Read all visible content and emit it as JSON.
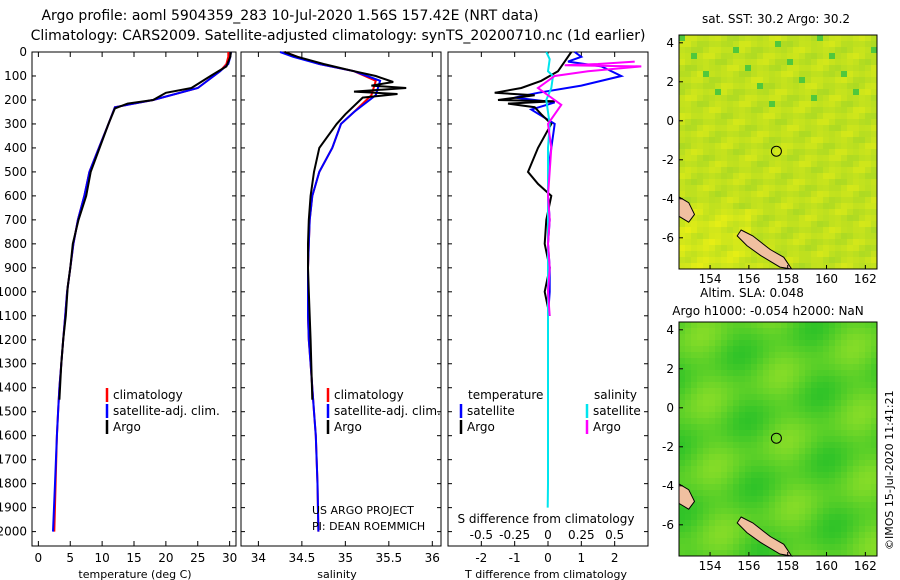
{
  "titles": {
    "line1": "Argo profile: aoml 5904359_283 10-Jul-2020 1.56S 157.42E (NRT data)",
    "line2": "Climatology: CARS2009. Satellite-adjusted climatology: synTS_20200710.nc (1d earlier)"
  },
  "colors": {
    "argo": "#000000",
    "climatology": "#ff0000",
    "satellite": "#0000ff",
    "salinity_sat": "#00e5ee",
    "salinity_argo": "#ff00ff",
    "map_land": "#f0c0a0"
  },
  "chart_data": [
    {
      "type": "line",
      "name": "temperature-profile",
      "xlabel": "temperature (deg C)",
      "ylabel": "",
      "xlim": [
        -1,
        31
      ],
      "ylim": [
        2060,
        0
      ],
      "xticks": [
        "0",
        "5",
        "10",
        "15",
        "20",
        "25",
        "30"
      ],
      "xtick_values": [
        0,
        5,
        10,
        15,
        20,
        25,
        30
      ],
      "yticks": [
        "0",
        "100",
        "200",
        "300",
        "400",
        "500",
        "600",
        "700",
        "800",
        "900",
        "1000",
        "1100",
        "1200",
        "1300",
        "1400",
        "1500",
        "1600",
        "1700",
        "1800",
        "1900",
        "2000"
      ],
      "ytick_values": [
        0,
        100,
        200,
        300,
        400,
        500,
        600,
        700,
        800,
        900,
        1000,
        1100,
        1200,
        1300,
        1400,
        1500,
        1600,
        1700,
        1800,
        1900,
        2000
      ],
      "legend": [
        "climatology",
        "satellite-adj. clim.",
        "Argo"
      ],
      "series": [
        {
          "name": "climatology",
          "color": "#ff0000",
          "x": [
            29.8,
            29.8,
            29.5,
            28.5,
            25,
            18,
            12,
            11,
            9.5,
            8,
            7.2,
            6.2,
            5.5,
            5,
            4.5,
            4.2,
            3.9,
            3.6,
            3.3,
            3.1,
            2.9,
            2.7,
            2.5
          ],
          "y": [
            0,
            20,
            50,
            80,
            150,
            200,
            230,
            300,
            400,
            500,
            600,
            700,
            800,
            900,
            1000,
            1100,
            1200,
            1300,
            1400,
            1500,
            1600,
            1800,
            2000
          ]
        },
        {
          "name": "satellite-adj. clim.",
          "color": "#0000ff",
          "x": [
            30.2,
            30.1,
            29.8,
            28.5,
            25,
            18,
            12,
            11,
            9.5,
            8,
            7.2,
            6.2,
            5.5,
            5,
            4.5,
            4.2,
            3.9,
            3.6,
            3.3,
            3.1,
            2.9,
            2.6,
            2.3
          ],
          "y": [
            0,
            20,
            50,
            80,
            150,
            200,
            230,
            300,
            400,
            500,
            600,
            700,
            800,
            900,
            1000,
            1100,
            1200,
            1300,
            1400,
            1500,
            1600,
            1800,
            2000
          ]
        },
        {
          "name": "Argo",
          "color": "#000000",
          "x": [
            30.2,
            30.1,
            29.5,
            27,
            24,
            20,
            18,
            14,
            12,
            11,
            9.6,
            8.2,
            7.5,
            6.3,
            5.4,
            5,
            4.6,
            4.3,
            3.9,
            3.6,
            3.3
          ],
          "y": [
            0,
            20,
            60,
            100,
            150,
            170,
            200,
            215,
            235,
            300,
            400,
            500,
            600,
            700,
            800,
            900,
            980,
            1100,
            1200,
            1300,
            1450
          ]
        }
      ]
    },
    {
      "type": "line",
      "name": "salinity-profile",
      "xlabel": "salinity",
      "ylabel": "",
      "xlim": [
        33.8,
        36.1
      ],
      "ylim": [
        2060,
        0
      ],
      "xticks": [
        "34",
        "34.5",
        "35",
        "35.5",
        "36"
      ],
      "xtick_values": [
        34,
        34.5,
        35,
        35.5,
        36
      ],
      "legend": [
        "climatology",
        "satellite-adj. clim.",
        "Argo"
      ],
      "annotation": [
        "US ARGO PROJECT",
        "PI: DEAN ROEMMICH"
      ],
      "series": [
        {
          "name": "climatology",
          "color": "#ff0000",
          "x": [
            34.3,
            34.45,
            34.7,
            35.1,
            35.35,
            35.3,
            35.1,
            34.95,
            34.85,
            34.7,
            34.62,
            34.59,
            34.58,
            34.57,
            34.57,
            34.57,
            34.58,
            34.6,
            34.62,
            34.64,
            34.66,
            34.68,
            34.69
          ],
          "y": [
            0,
            20,
            50,
            80,
            120,
            180,
            250,
            300,
            400,
            500,
            600,
            700,
            800,
            900,
            1000,
            1100,
            1200,
            1300,
            1400,
            1500,
            1600,
            1800,
            2000
          ]
        },
        {
          "name": "satellite-adj. clim.",
          "color": "#0000ff",
          "x": [
            34.25,
            34.4,
            34.7,
            35.1,
            35.4,
            35.35,
            35.1,
            34.95,
            34.85,
            34.7,
            34.62,
            34.59,
            34.58,
            34.57,
            34.57,
            34.57,
            34.58,
            34.6,
            34.62,
            34.64,
            34.66,
            34.68,
            34.69
          ],
          "y": [
            0,
            20,
            50,
            80,
            120,
            180,
            250,
            300,
            400,
            500,
            600,
            700,
            800,
            900,
            1000,
            1100,
            1200,
            1300,
            1400,
            1500,
            1600,
            1800,
            2000
          ]
        },
        {
          "name": "Argo",
          "color": "#000000",
          "x": [
            34.3,
            34.45,
            34.75,
            35.1,
            35.35,
            35.55,
            35.3,
            35.7,
            35.1,
            35.6,
            35.2,
            35.0,
            34.9,
            34.7,
            34.64,
            34.6,
            34.58,
            34.57,
            34.57,
            34.58,
            34.6,
            34.62
          ],
          "y": [
            0,
            20,
            50,
            80,
            100,
            125,
            140,
            150,
            165,
            175,
            190,
            260,
            300,
            400,
            500,
            600,
            700,
            800,
            900,
            1000,
            1200,
            1450
          ]
        }
      ]
    },
    {
      "type": "line",
      "name": "difference-profile",
      "xlabel": "T difference from climatology",
      "ylabel": "",
      "xlim": [
        -3,
        3
      ],
      "ylim": [
        2060,
        0
      ],
      "xticks": [
        "-2",
        "-1",
        "0",
        "1",
        "2"
      ],
      "xtick_values": [
        -2,
        -1,
        0,
        1,
        2
      ],
      "secondary_axis_title": "S difference from climatology",
      "secondary_xticks": [
        "-0.5",
        "-0.25",
        "0",
        "0.25",
        "0.5"
      ],
      "secondary_xtick_values": [
        -0.5,
        -0.25,
        0,
        0.25,
        0.5
      ],
      "legend_left_title": "temperature",
      "legend_left": [
        "satellite",
        "Argo"
      ],
      "legend_right_title": "salinity",
      "legend_right": [
        "satellite",
        "Argo"
      ],
      "series": [
        {
          "name": "T satellite",
          "color": "#0000ff",
          "x": [
            0.8,
            1.0,
            0.6,
            1.6,
            2.2,
            1.0,
            -0.3,
            -1.0,
            0.2,
            -0.5,
            0.2,
            0.1,
            0.0,
            0.0,
            0.05,
            0.0,
            0.05,
            0.05,
            0.0
          ],
          "y": [
            0,
            20,
            40,
            60,
            100,
            140,
            170,
            190,
            210,
            240,
            300,
            400,
            500,
            600,
            700,
            800,
            900,
            1000,
            1100
          ]
        },
        {
          "name": "T Argo",
          "color": "#000000",
          "x": [
            0.7,
            0.5,
            0.3,
            -0.2,
            -0.8,
            -1.6,
            -0.4,
            -1.5,
            0.2,
            -1.2,
            -0.4,
            -0.2,
            0.1,
            -0.3,
            -0.6,
            -0.3,
            0.1,
            -0.05,
            -0.1,
            0.05,
            -0.1,
            0.05
          ],
          "y": [
            0,
            40,
            80,
            120,
            150,
            170,
            180,
            200,
            205,
            215,
            230,
            260,
            300,
            400,
            500,
            550,
            600,
            700,
            800,
            900,
            1000,
            1100
          ]
        },
        {
          "name": "S satellite",
          "color": "#00e5ee",
          "x": [
            -0.05,
            0.05,
            0.0,
            0.15,
            0.1,
            -0.05,
            0.0,
            0.05,
            0.0,
            0.0,
            0.0,
            0.0,
            0.0,
            0.0,
            0.0,
            0.0,
            0.0,
            0.0,
            -0.01
          ],
          "y": [
            0,
            30,
            80,
            100,
            150,
            200,
            250,
            300,
            400,
            600,
            800,
            1000,
            1100,
            1200,
            1400,
            1600,
            1700,
            1800,
            1900
          ]
        },
        {
          "name": "S Argo",
          "color": "#ff00ff",
          "x": [
            2.6,
            1.5,
            0.5,
            2.8,
            1.2,
            0.2,
            -0.3,
            0.4,
            0.0,
            0.1,
            0.0,
            0.05,
            0.0,
            0.05,
            0.0,
            0.05
          ],
          "y": [
            40,
            50,
            55,
            60,
            80,
            100,
            150,
            220,
            300,
            400,
            600,
            700,
            800,
            900,
            1000,
            1100
          ]
        }
      ]
    },
    {
      "type": "heatmap",
      "name": "sst-map",
      "title": "sat. SST: 30.2 Argo: 30.2",
      "xticks": [
        "154",
        "156",
        "158",
        "160",
        "162"
      ],
      "xtick_values": [
        154,
        156,
        158,
        160,
        162
      ],
      "yticks": [
        "4",
        "2",
        "0",
        "-2",
        "-4",
        "-6"
      ],
      "ytick_values": [
        4,
        2,
        0,
        -2,
        -4,
        -6
      ],
      "xlim": [
        152.4,
        162.6
      ],
      "ylim": [
        -7.6,
        4.4
      ],
      "marker": {
        "lon": 157.42,
        "lat": -1.56
      }
    },
    {
      "type": "heatmap",
      "name": "altimetry-map",
      "title": "Altim. SLA: 0.048",
      "subtitle": "Argo h1000: -0.054 h2000: NaN",
      "xticks": [
        "154",
        "156",
        "158",
        "160",
        "162"
      ],
      "xtick_values": [
        154,
        156,
        158,
        160,
        162
      ],
      "yticks": [
        "4",
        "2",
        "0",
        "-2",
        "-4",
        "-6"
      ],
      "ytick_values": [
        4,
        2,
        0,
        -2,
        -4,
        -6
      ],
      "xlim": [
        152.4,
        162.6
      ],
      "ylim": [
        -7.6,
        4.4
      ],
      "marker": {
        "lon": 157.42,
        "lat": -1.56
      }
    }
  ],
  "credit": "©IMOS 15-Jul-2020 11:41:21"
}
